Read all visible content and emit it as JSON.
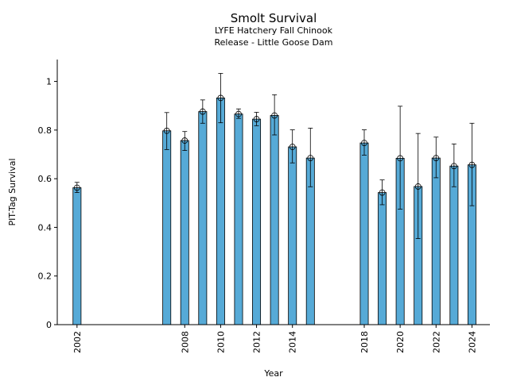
{
  "chart_data": {
    "type": "bar",
    "title": "Smolt Survival",
    "subtitle_lines": [
      "LYFE Hatchery Fall Chinook",
      "Release - Little Goose Dam"
    ],
    "xlabel": "Year",
    "ylabel": "PIT-Tag Survival",
    "ylim": [
      0,
      1.09
    ],
    "xlim": [
      2000.9,
      2025.0
    ],
    "yticks": [
      0,
      0.2,
      0.4,
      0.6,
      0.8,
      1
    ],
    "ytick_labels": [
      "0",
      "0.2",
      "0.4",
      "0.6",
      "0.8",
      "1"
    ],
    "xticks": [
      2002,
      2008,
      2010,
      2012,
      2014,
      2018,
      2020,
      2022,
      2024
    ],
    "xtick_labels": [
      "2002",
      "2008",
      "2010",
      "2012",
      "2014",
      "2018",
      "2020",
      "2022",
      "2024"
    ],
    "grid": false,
    "legend": "none",
    "bar_color": "#56aad7",
    "years": [
      2002,
      2007,
      2008,
      2009,
      2010,
      2011,
      2012,
      2013,
      2014,
      2015,
      2018,
      2019,
      2020,
      2021,
      2022,
      2023,
      2024
    ],
    "values": [
      0.563,
      0.797,
      0.757,
      0.876,
      0.932,
      0.866,
      0.845,
      0.86,
      0.731,
      0.685,
      0.747,
      0.543,
      0.684,
      0.568,
      0.685,
      0.652,
      0.657
    ],
    "lower": [
      0.543,
      0.72,
      0.716,
      0.828,
      0.83,
      0.848,
      0.818,
      0.78,
      0.665,
      0.567,
      0.697,
      0.493,
      0.475,
      0.354,
      0.604,
      0.567,
      0.489
    ],
    "upper": [
      0.585,
      0.872,
      0.794,
      0.924,
      1.033,
      0.887,
      0.873,
      0.945,
      0.801,
      0.808,
      0.801,
      0.595,
      0.898,
      0.786,
      0.771,
      0.743,
      0.828
    ]
  }
}
